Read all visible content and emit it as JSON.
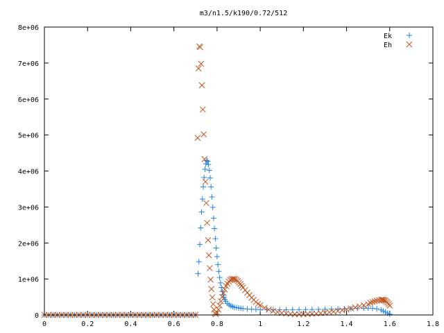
{
  "chart_data": {
    "type": "scatter",
    "title": "m3/n1.5/k190/0.72/512",
    "xlabel": "",
    "ylabel": "",
    "xlim": [
      0,
      1.8
    ],
    "ylim": [
      0,
      8000000
    ],
    "x_ticks": [
      0,
      0.2,
      0.4,
      0.6,
      0.8,
      1,
      1.2,
      1.4,
      1.6,
      1.8
    ],
    "x_tick_labels": [
      "0",
      "0.2",
      "0.4",
      "0.6",
      "0.8",
      "1",
      "1.2",
      "1.4",
      "1.6",
      "1.8"
    ],
    "y_ticks": [
      0,
      1000000,
      2000000,
      3000000,
      4000000,
      5000000,
      6000000,
      7000000,
      8000000
    ],
    "y_tick_labels": [
      "0",
      "1e+06",
      "2e+06",
      "3e+06",
      "4e+06",
      "5e+06",
      "6e+06",
      "7e+06",
      "8e+06"
    ],
    "grid": false,
    "legend_position": "top-right",
    "series": [
      {
        "name": "Ek",
        "marker": "plus",
        "color": "#1f82e0",
        "x": [
          0.0,
          0.02,
          0.04,
          0.06,
          0.08,
          0.1,
          0.12,
          0.14,
          0.16,
          0.18,
          0.2,
          0.22,
          0.24,
          0.26,
          0.28,
          0.3,
          0.32,
          0.34,
          0.36,
          0.38,
          0.4,
          0.42,
          0.44,
          0.46,
          0.48,
          0.5,
          0.52,
          0.54,
          0.56,
          0.58,
          0.6,
          0.62,
          0.64,
          0.66,
          0.68,
          0.7,
          0.712,
          0.716,
          0.72,
          0.724,
          0.728,
          0.732,
          0.736,
          0.74,
          0.744,
          0.748,
          0.752,
          0.756,
          0.76,
          0.764,
          0.768,
          0.772,
          0.776,
          0.78,
          0.784,
          0.788,
          0.792,
          0.796,
          0.8,
          0.804,
          0.808,
          0.812,
          0.816,
          0.82,
          0.824,
          0.828,
          0.832,
          0.836,
          0.84,
          0.848,
          0.856,
          0.864,
          0.872,
          0.88,
          0.89,
          0.9,
          0.91,
          0.92,
          0.94,
          0.96,
          0.98,
          1.0,
          1.03,
          1.06,
          1.09,
          1.12,
          1.15,
          1.18,
          1.21,
          1.24,
          1.27,
          1.3,
          1.33,
          1.36,
          1.39,
          1.42,
          1.45,
          1.48,
          1.5,
          1.52,
          1.54,
          1.56,
          1.57,
          1.58,
          1.59,
          1.6
        ],
        "y": [
          0,
          0,
          0,
          0,
          0,
          0,
          0,
          0,
          0,
          0,
          0,
          0,
          0,
          0,
          0,
          0,
          0,
          0,
          0,
          0,
          0,
          0,
          0,
          0,
          0,
          0,
          0,
          0,
          0,
          0,
          0,
          0,
          0,
          0,
          0,
          0,
          1150000,
          1480000,
          1960000,
          2420000,
          2860000,
          3220000,
          3560000,
          3820000,
          4050000,
          4200000,
          4290000,
          4270000,
          4180000,
          4020000,
          3810000,
          3560000,
          3280000,
          2990000,
          2690000,
          2400000,
          2120000,
          1860000,
          1620000,
          1400000,
          1210000,
          1040000,
          890000,
          760000,
          650000,
          560000,
          490000,
          430000,
          380000,
          320000,
          280000,
          250000,
          230000,
          215000,
          205000,
          195000,
          185000,
          175000,
          165000,
          160000,
          155000,
          150000,
          148000,
          146000,
          145000,
          145000,
          146000,
          148000,
          150000,
          152000,
          155000,
          158000,
          162000,
          166000,
          170000,
          175000,
          180000,
          185000,
          188000,
          185000,
          170000,
          140000,
          110000,
          80000,
          50000,
          20000
        ]
      },
      {
        "name": "Eh",
        "marker": "cross",
        "color": "#c0541e",
        "x": [
          0.0,
          0.02,
          0.04,
          0.06,
          0.08,
          0.1,
          0.12,
          0.14,
          0.16,
          0.18,
          0.2,
          0.22,
          0.24,
          0.26,
          0.28,
          0.3,
          0.32,
          0.34,
          0.36,
          0.38,
          0.4,
          0.42,
          0.44,
          0.46,
          0.48,
          0.5,
          0.52,
          0.54,
          0.56,
          0.58,
          0.6,
          0.62,
          0.64,
          0.66,
          0.68,
          0.7,
          0.71,
          0.714,
          0.718,
          0.722,
          0.726,
          0.73,
          0.734,
          0.738,
          0.742,
          0.746,
          0.75,
          0.754,
          0.758,
          0.762,
          0.766,
          0.77,
          0.774,
          0.778,
          0.782,
          0.786,
          0.79,
          0.794,
          0.8,
          0.806,
          0.812,
          0.818,
          0.824,
          0.83,
          0.836,
          0.842,
          0.848,
          0.854,
          0.86,
          0.866,
          0.872,
          0.878,
          0.884,
          0.89,
          0.896,
          0.902,
          0.908,
          0.914,
          0.92,
          0.93,
          0.94,
          0.95,
          0.96,
          0.97,
          0.98,
          0.99,
          1.0,
          1.02,
          1.04,
          1.06,
          1.08,
          1.1,
          1.12,
          1.14,
          1.16,
          1.18,
          1.2,
          1.22,
          1.24,
          1.26,
          1.28,
          1.3,
          1.32,
          1.34,
          1.36,
          1.38,
          1.4,
          1.42,
          1.44,
          1.46,
          1.48,
          1.5,
          1.51,
          1.52,
          1.53,
          1.54,
          1.55,
          1.56,
          1.565,
          1.57,
          1.575,
          1.58,
          1.585,
          1.59,
          1.595,
          1.6
        ],
        "y": [
          0,
          0,
          0,
          0,
          0,
          0,
          0,
          0,
          0,
          0,
          0,
          0,
          0,
          0,
          0,
          0,
          0,
          0,
          0,
          0,
          0,
          0,
          0,
          0,
          0,
          0,
          0,
          0,
          0,
          0,
          0,
          0,
          0,
          0,
          0,
          0,
          4920000,
          6850000,
          7460000,
          7440000,
          6980000,
          6380000,
          5710000,
          5020000,
          4330000,
          3700000,
          3110000,
          2560000,
          2080000,
          1660000,
          1300000,
          980000,
          720000,
          490000,
          300000,
          150000,
          50000,
          20000,
          60000,
          150000,
          260000,
          380000,
          500000,
          610000,
          710000,
          800000,
          870000,
          930000,
          970000,
          990000,
          1000000,
          1000000,
          990000,
          970000,
          940000,
          900000,
          860000,
          810000,
          760000,
          690000,
          620000,
          550000,
          480000,
          420000,
          360000,
          310000,
          270000,
          200000,
          150000,
          110000,
          80000,
          55000,
          40000,
          28000,
          22000,
          20000,
          22000,
          26000,
          32000,
          40000,
          50000,
          62000,
          76000,
          92000,
          110000,
          130000,
          155000,
          180000,
          210000,
          240000,
          270000,
          300000,
          340000,
          360000,
          380000,
          395000,
          410000,
          420000,
          425000,
          420000,
          410000,
          395000,
          370000,
          340000,
          300000,
          260000
        ]
      }
    ]
  }
}
